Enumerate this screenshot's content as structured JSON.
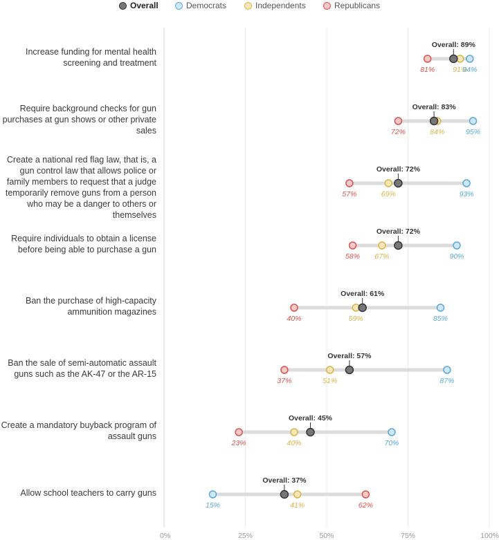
{
  "legend": [
    {
      "name": "Overall",
      "color": "#555555"
    },
    {
      "name": "Democrats",
      "color": "#5aa9d6"
    },
    {
      "name": "Independents",
      "color": "#d9b44a"
    },
    {
      "name": "Republicans",
      "color": "#d9534f"
    }
  ],
  "chart_data": {
    "type": "dumbbell",
    "xlim": [
      0,
      100
    ],
    "ticks": [
      "0%",
      "25%",
      "50%",
      "75%",
      "100%"
    ],
    "grid": true,
    "legend_position": "top",
    "overall_prefix": "Overall: ",
    "series_colors": {
      "overall": "#555555",
      "dem": "#5aa9d6",
      "ind": "#d9b44a",
      "rep": "#d9534f"
    },
    "rows": [
      {
        "label": "Increase funding for mental health screening and treatment",
        "overall": 89,
        "dem": 94,
        "ind": 91,
        "rep": 81
      },
      {
        "label": "Require background checks for gun purchases at gun shows or other private sales",
        "overall": 83,
        "dem": 95,
        "ind": 84,
        "rep": 72
      },
      {
        "label": "Create a national red flag law, that is, a gun control law that allows police or family members to request that a judge temporarily remove guns from a person who may be a danger to others or themselves",
        "overall": 72,
        "dem": 93,
        "ind": 69,
        "rep": 57
      },
      {
        "label": "Require individuals to obtain a license before being able to purchase a gun",
        "overall": 72,
        "dem": 90,
        "ind": 67,
        "rep": 58
      },
      {
        "label": "Ban the purchase of high-capacity ammunition magazines",
        "overall": 61,
        "dem": 85,
        "ind": 59,
        "rep": 40
      },
      {
        "label": "Ban the sale of semi-automatic assault guns such as the AK-47 or the AR-15",
        "overall": 57,
        "dem": 87,
        "ind": 51,
        "rep": 37
      },
      {
        "label": "Create a mandatory buyback program of assault guns",
        "overall": 45,
        "dem": 70,
        "ind": 40,
        "rep": 23
      },
      {
        "label": "Allow school teachers to carry guns",
        "overall": 37,
        "dem": 15,
        "ind": 41,
        "rep": 62
      }
    ]
  }
}
